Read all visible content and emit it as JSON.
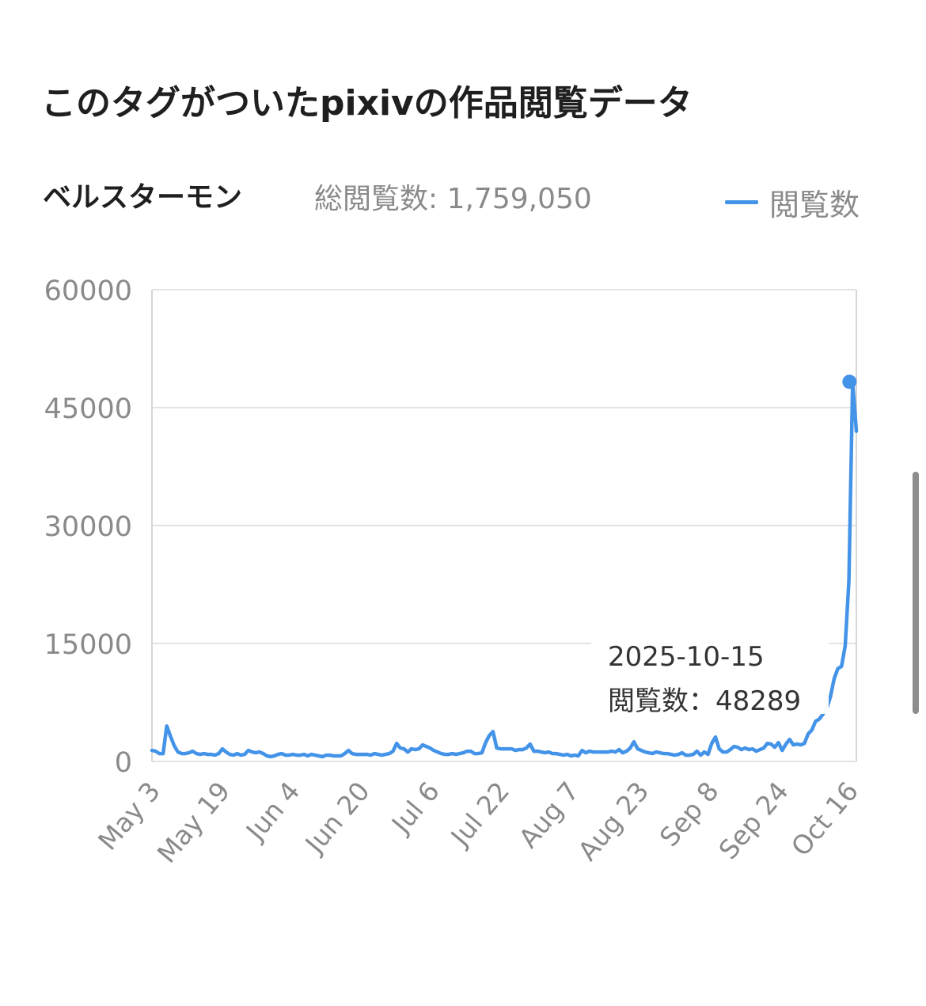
{
  "section": {
    "title": "このタグがついたpixivの作品閲覧データ"
  },
  "header": {
    "tag_name": "ベルスターモン",
    "total_label": "総閲覧数: 1,759,050"
  },
  "legend": {
    "label": "閲覧数",
    "color": "#4393e8"
  },
  "tooltip": {
    "date": "2025-10-15",
    "value_label": "閲覧数：48289"
  },
  "chart_data": {
    "type": "line",
    "x_tick_labels": [
      "May 3",
      "May 19",
      "Jun 4",
      "Jun 20",
      "Jul 6",
      "Jul 22",
      "Aug 7",
      "Aug 23",
      "Sep 8",
      "Sep 24",
      "Oct 16"
    ],
    "y_tick_labels": [
      "60000",
      "45000",
      "30000",
      "15000",
      "0"
    ],
    "ylim": [
      0,
      60000
    ],
    "series": [
      {
        "name": "閲覧数",
        "color": "#4393e8",
        "values": [
          1400,
          1300,
          1000,
          1000,
          4500,
          3200,
          2000,
          1200,
          1000,
          1000,
          1100,
          1300,
          1000,
          900,
          1000,
          900,
          900,
          800,
          1000,
          1600,
          1200,
          900,
          800,
          1000,
          800,
          900,
          1400,
          1200,
          1100,
          1200,
          1000,
          700,
          600,
          700,
          900,
          1000,
          800,
          800,
          900,
          800,
          800,
          900,
          700,
          900,
          800,
          700,
          600,
          800,
          800,
          700,
          700,
          700,
          1000,
          1400,
          1000,
          900,
          900,
          900,
          900,
          800,
          1000,
          900,
          800,
          900,
          1000,
          1300,
          2300,
          1700,
          1600,
          1200,
          1600,
          1500,
          1600,
          2100,
          1900,
          1700,
          1400,
          1200,
          1000,
          900,
          900,
          1000,
          900,
          1000,
          1100,
          1300,
          1300,
          1000,
          1000,
          1100,
          2400,
          3300,
          3800,
          1700,
          1600,
          1600,
          1600,
          1600,
          1400,
          1500,
          1500,
          1700,
          2200,
          1300,
          1300,
          1200,
          1100,
          1200,
          1000,
          1000,
          900,
          800,
          900,
          700,
          800,
          700,
          1400,
          1100,
          1300,
          1200,
          1200,
          1200,
          1200,
          1200,
          1300,
          1200,
          1500,
          1100,
          1300,
          1700,
          2500,
          1600,
          1400,
          1200,
          1100,
          1000,
          1200,
          1100,
          1000,
          1000,
          900,
          800,
          900,
          1100,
          800,
          800,
          900,
          1300,
          800,
          1200,
          900,
          2300,
          3100,
          1600,
          1200,
          1200,
          1500,
          1900,
          1800,
          1500,
          1700,
          1500,
          1600,
          1300,
          1500,
          1700,
          2300,
          2200,
          1800,
          2400,
          1400,
          2200,
          2800,
          2100,
          2200,
          2100,
          2300,
          3500,
          4000,
          5100,
          5400,
          6000,
          6700,
          8200,
          10500,
          11800,
          12100,
          14700,
          23000,
          48289,
          42000
        ]
      }
    ],
    "highlight": {
      "date": "2025-10-15",
      "value": 48289
    }
  }
}
